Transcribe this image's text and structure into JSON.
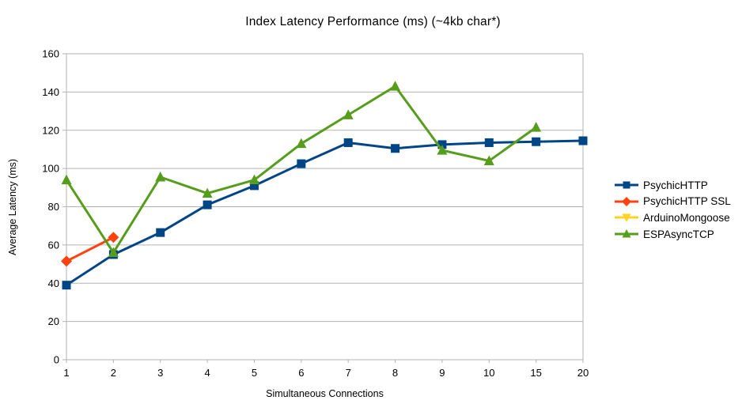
{
  "chart_data": {
    "type": "line",
    "title": "Index Latency Performance (ms) (~4kb char*)",
    "xlabel": "Simultaneous Connections",
    "ylabel": "Average Latency (ms)",
    "categories": [
      1,
      2,
      3,
      4,
      5,
      6,
      7,
      8,
      9,
      10,
      15,
      20
    ],
    "ylim": [
      0,
      160
    ],
    "y_tick_step": 20,
    "y_ticks": [
      0,
      20,
      40,
      60,
      80,
      100,
      120,
      140,
      160
    ],
    "grid": true,
    "gridline_color": "#b3b3b3",
    "axis_color": "#b3b3b3",
    "legend_position": "right",
    "series": [
      {
        "name": "PsychicHTTP",
        "color": "#004586",
        "marker": "square",
        "values": [
          39,
          55,
          66.5,
          81,
          91,
          102.5,
          113.5,
          110.5,
          112.5,
          113.5,
          114,
          114.5
        ]
      },
      {
        "name": "PsychicHTTP SSL",
        "color": "#FF420E",
        "marker": "diamond",
        "values": [
          51.5,
          64,
          null,
          null,
          null,
          null,
          null,
          null,
          null,
          null,
          null,
          null
        ]
      },
      {
        "name": "ArduinoMongoose",
        "color": "#FFD320",
        "marker": "triangle-down",
        "values": [
          null,
          null,
          null,
          null,
          null,
          null,
          null,
          null,
          null,
          null,
          null,
          null
        ]
      },
      {
        "name": "ESPAsyncTCP",
        "color": "#579D1C",
        "marker": "triangle-up",
        "values": [
          94,
          56,
          95.5,
          87,
          94,
          113,
          128,
          143,
          109.5,
          104,
          121.5,
          null
        ]
      }
    ]
  }
}
